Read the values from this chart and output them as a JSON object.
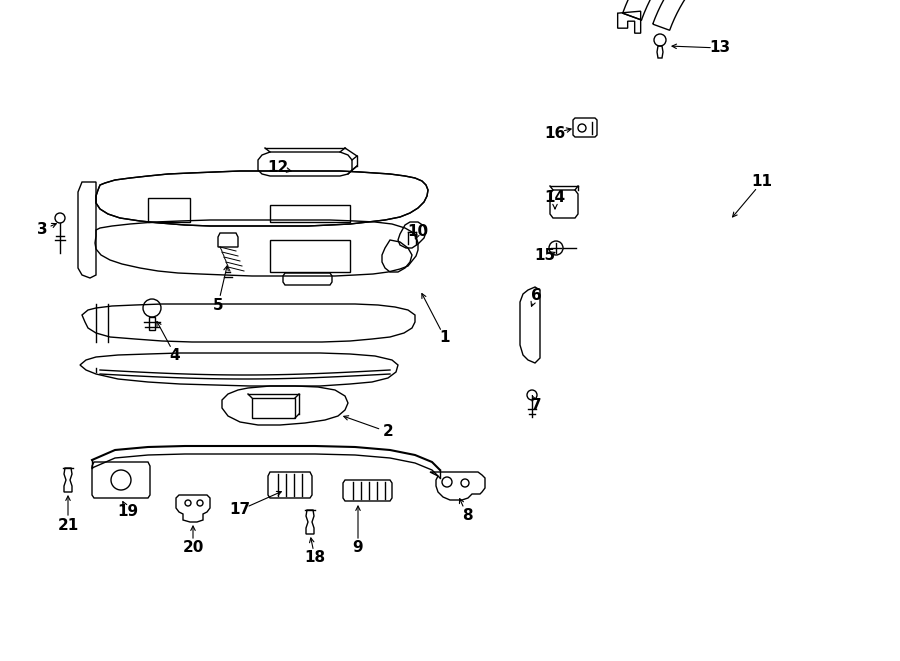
{
  "background_color": "#ffffff",
  "line_color": "#000000",
  "lw": 1.0,
  "figsize": [
    9.0,
    6.61
  ],
  "dpi": 100
}
